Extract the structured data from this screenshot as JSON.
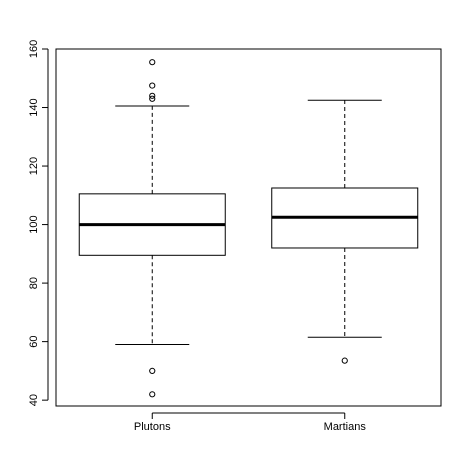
{
  "chart_data": {
    "type": "boxplot",
    "title": "",
    "xlabel": "",
    "ylabel": "",
    "ylim": [
      38,
      160
    ],
    "yticks": [
      40,
      60,
      80,
      100,
      120,
      140,
      160
    ],
    "ytick_labels": [
      "40",
      "60",
      "80",
      "100",
      "120",
      "140",
      "160"
    ],
    "categories": [
      "Plutons",
      "Martians"
    ],
    "series": [
      {
        "min": 59,
        "q1": 89.5,
        "median": 100,
        "q3": 110.5,
        "max": 140.5,
        "outliers": [
          155.5,
          147.5,
          144,
          143,
          50,
          42
        ]
      },
      {
        "min": 61.5,
        "q1": 92,
        "median": 102.5,
        "q3": 112.5,
        "max": 142.5,
        "outliers": [
          53.5
        ]
      }
    ],
    "grid": false,
    "legend": "none"
  }
}
